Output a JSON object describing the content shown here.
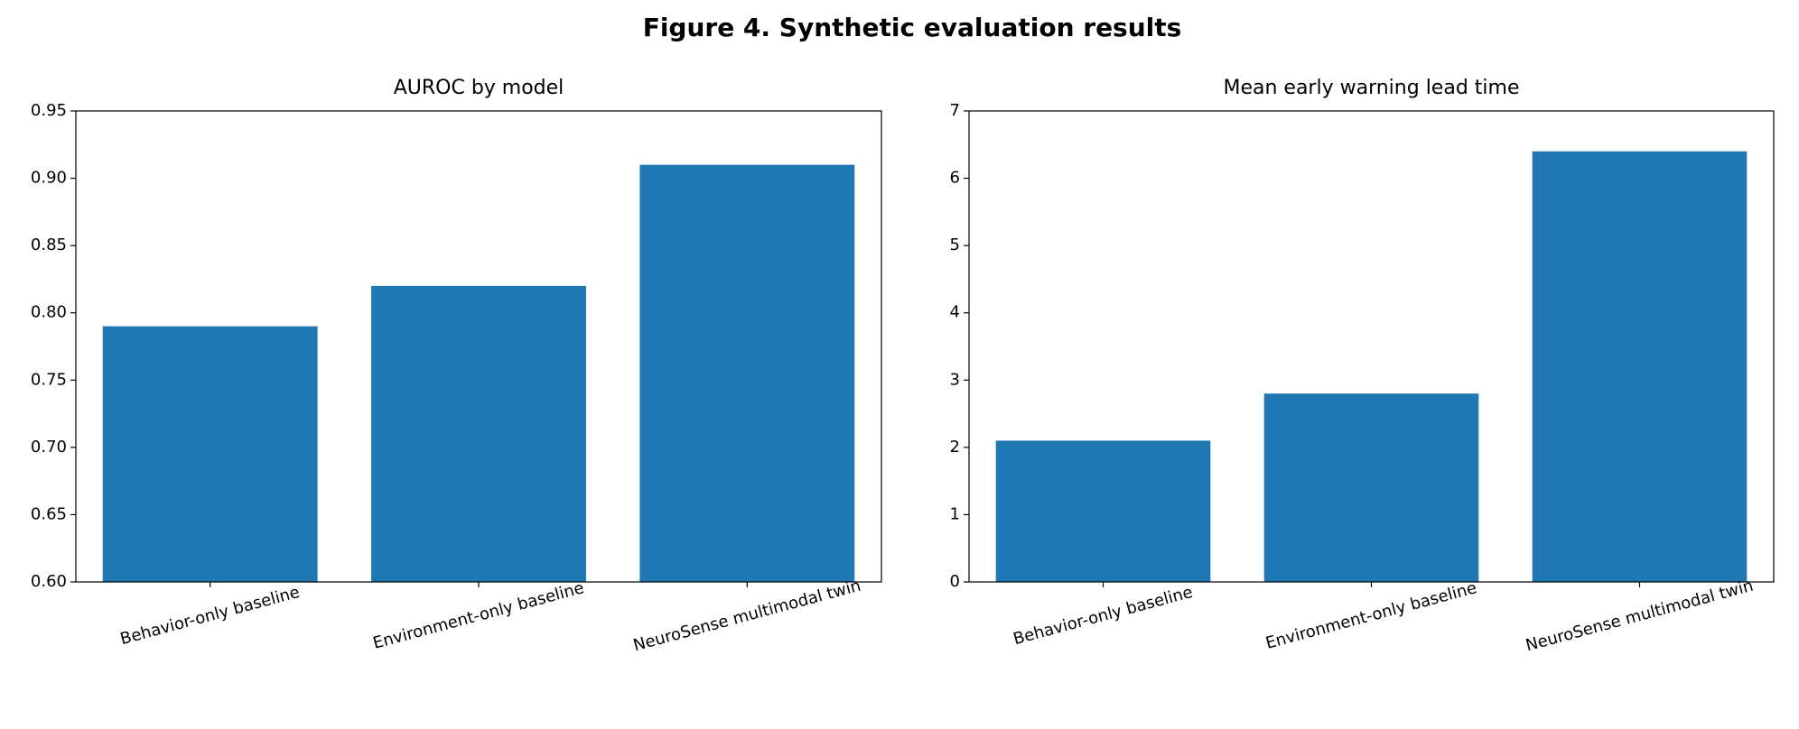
{
  "title": "Figure 4. Synthetic evaluation results",
  "chart_data": [
    {
      "type": "bar",
      "title": "AUROC by model",
      "categories": [
        "Behavior-only baseline",
        "Environment-only baseline",
        "NeuroSense multimodal twin"
      ],
      "values": [
        0.79,
        0.82,
        0.91
      ],
      "color": "#1f77b4",
      "ylim": [
        0.6,
        0.95
      ],
      "yticks": [
        {
          "value": 0.6,
          "label": "0.60"
        },
        {
          "value": 0.65,
          "label": "0.65"
        },
        {
          "value": 0.7,
          "label": "0.70"
        },
        {
          "value": 0.75,
          "label": "0.75"
        },
        {
          "value": 0.8,
          "label": "0.80"
        },
        {
          "value": 0.85,
          "label": "0.85"
        },
        {
          "value": 0.9,
          "label": "0.90"
        },
        {
          "value": 0.95,
          "label": "0.95"
        }
      ],
      "grid": false
    },
    {
      "type": "bar",
      "title": "Mean early warning lead time",
      "categories": [
        "Behavior-only baseline",
        "Environment-only baseline",
        "NeuroSense multimodal twin"
      ],
      "values": [
        2.1,
        2.8,
        6.4
      ],
      "color": "#1f77b4",
      "ylim": [
        0,
        7
      ],
      "yticks": [
        0,
        1,
        2,
        3,
        4,
        5,
        6,
        7
      ],
      "grid": false
    }
  ]
}
